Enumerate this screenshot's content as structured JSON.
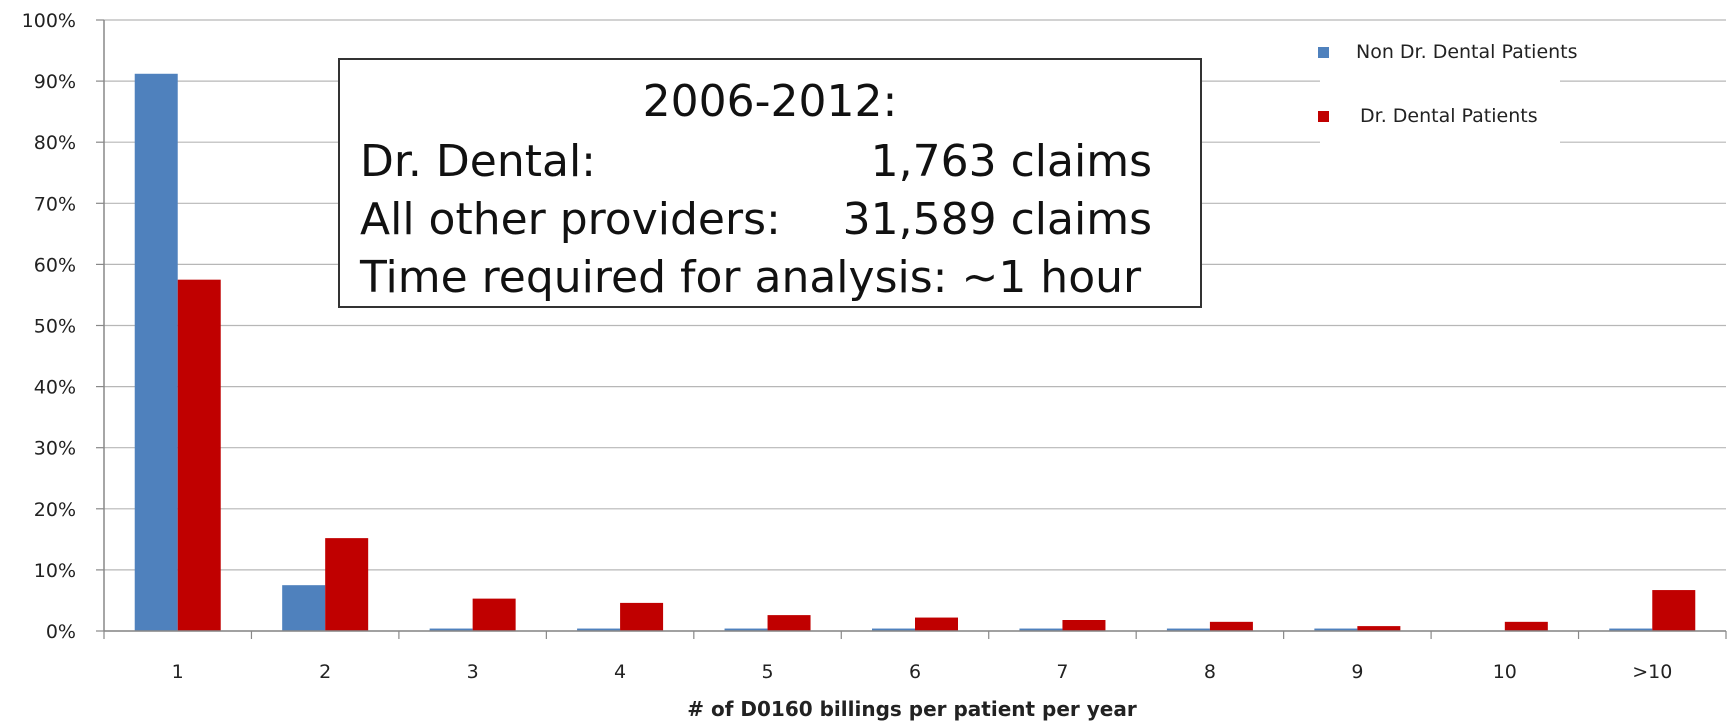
{
  "chart_data": {
    "type": "bar",
    "categories": [
      "1",
      "2",
      "3",
      "4",
      "5",
      "6",
      "7",
      "8",
      "9",
      "10",
      ">10"
    ],
    "series": [
      {
        "name": "Non Dr. Dental Patients",
        "color": "#4f81bd",
        "values": [
          91.2,
          7.5,
          0.4,
          0.4,
          0.4,
          0.4,
          0.4,
          0.4,
          0.4,
          0,
          0.4
        ]
      },
      {
        "name": "Dr. Dental Patients",
        "color": "#c00000",
        "values": [
          57.5,
          15.2,
          5.3,
          4.6,
          2.6,
          2.2,
          1.8,
          1.5,
          0.8,
          1.5,
          6.7
        ]
      }
    ],
    "yticks": [
      "0%",
      "10%",
      "20%",
      "30%",
      "40%",
      "50%",
      "60%",
      "70%",
      "80%",
      "90%",
      "100%"
    ],
    "ylim": [
      0,
      100
    ],
    "xlabel": "# of D0160 billings per patient per year",
    "ylabel": "",
    "grid": true,
    "legend": "top-right"
  },
  "annotation": {
    "title": "2006-2012:",
    "rows": [
      {
        "label": "Dr. Dental:",
        "value": "1,763 claims"
      },
      {
        "label": "All other providers:",
        "value": "31,589 claims"
      },
      {
        "label": "Time required for analysis:  ~1 hour",
        "value": ""
      }
    ]
  }
}
